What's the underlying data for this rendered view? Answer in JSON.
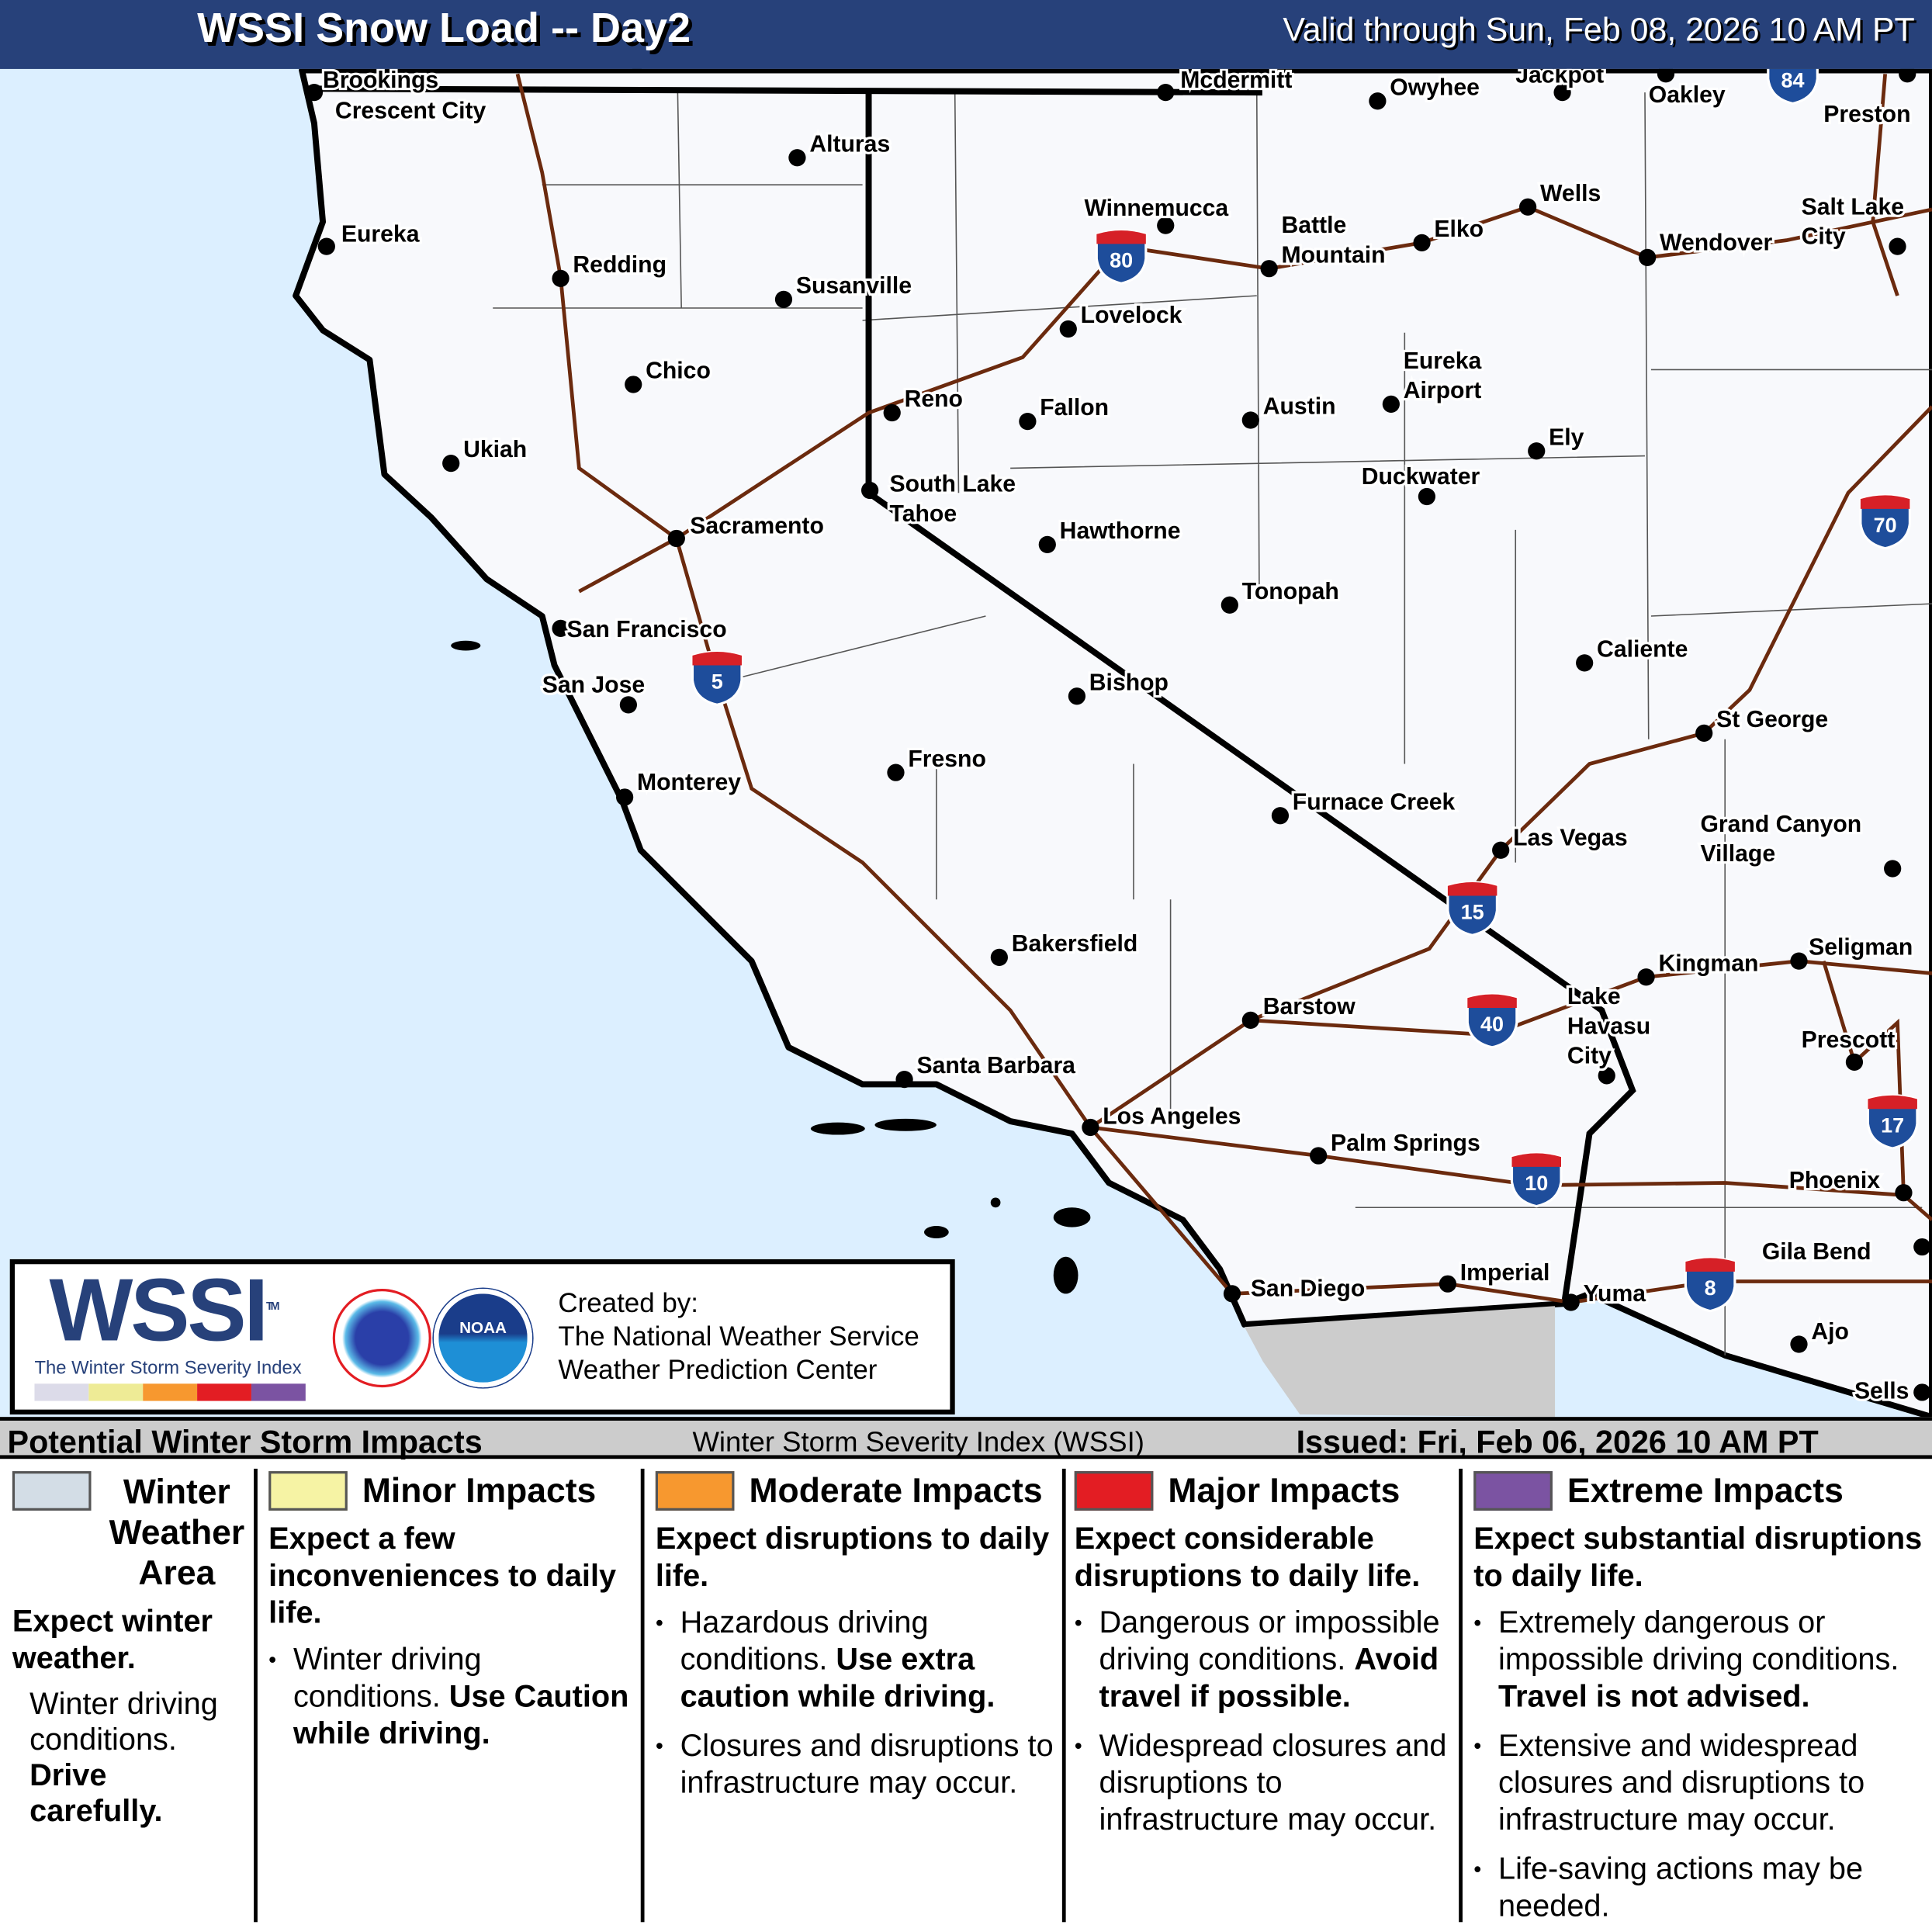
{
  "header": {
    "title": "WSSI Snow Load -- Day2",
    "valid": "Valid through Sun, Feb 08, 2026 10 AM PT"
  },
  "colors": {
    "header": "#27417a",
    "ocean": "#dcefff",
    "land": "#f8f9fc",
    "mexico": "#cccccc",
    "interstate": "#6b2a0e",
    "winter": "#d3dde6",
    "minor": "#f6f3a4",
    "moderate": "#f7982f",
    "major": "#e31d23",
    "extreme": "#7b53a2"
  },
  "cities": [
    "Brookings",
    "Crescent City",
    "Alturas",
    "Eureka",
    "Redding",
    "Susanville",
    "Winnemucca",
    "Battle Mountain",
    "Elko",
    "Wells",
    "Chico",
    "Lovelock",
    "Reno",
    "Fallon",
    "Austin",
    "Eureka Airport",
    "Ely",
    "Ukiah",
    "South Lake Tahoe",
    "Duckwater",
    "Sacramento",
    "Hawthorne",
    "Tonopah",
    "San Francisco",
    "San Jose",
    "Caliente",
    "Bishop",
    "St George",
    "Fresno",
    "Monterey",
    "Furnace Creek",
    "Las Vegas",
    "Grand Canyon Village",
    "Bakersfield",
    "Kingman",
    "Seligman",
    "Barstow",
    "Lake Havasu City",
    "Prescott",
    "Santa Barbara",
    "Los Angeles",
    "Palm Springs",
    "Phoenix",
    "Gila Bend",
    "San Diego",
    "Imperial",
    "Yuma",
    "Ajo",
    "Sells",
    "Mcdermitt",
    "Owyhee",
    "Jackpot",
    "Oakley",
    "Preston",
    "Wendover",
    "Salt Lake City"
  ],
  "interstates": [
    "80",
    "5",
    "15",
    "40",
    "10",
    "8",
    "70",
    "17",
    "84"
  ],
  "logo": {
    "wssi": "WSSI",
    "tm": "TM",
    "subtitle": "The Winter Storm Severity Index",
    "nws": "NATIONAL WEATHER SERVICE",
    "noaa": "NOAA",
    "created_by": "Created by:",
    "org1": "The National Weather Service",
    "org2": "Weather Prediction Center"
  },
  "legend": {
    "title": "Potential Winter Storm Impacts",
    "center": "Winter Storm Severity Index (WSSI)",
    "issued": "Issued: Fri, Feb 06, 2026 10 AM PT",
    "winter": {
      "title": "Winter Weather Area",
      "sub": "Expect winter weather.",
      "text": "Winter driving conditions.",
      "bold": "Drive carefully."
    },
    "minor": {
      "title": "Minor Impacts",
      "sub": "Expect a few inconveniences to daily life.",
      "b1": "Winter driving conditions.",
      "b1b": "Use Caution while driving."
    },
    "moderate": {
      "title": "Moderate Impacts",
      "sub": "Expect disruptions to daily life.",
      "b1": "Hazardous driving conditions.",
      "b1b": "Use extra caution while driving.",
      "b2": "Closures and disruptions to infrastructure may occur."
    },
    "major": {
      "title": "Major Impacts",
      "sub": "Expect considerable disruptions to daily life.",
      "b1": "Dangerous or impossible driving conditions.",
      "b1b": "Avoid travel if possible.",
      "b2": "Widespread closures and disruptions to infrastructure may occur."
    },
    "extreme": {
      "title": "Extreme Impacts",
      "sub": "Expect substantial disruptions to daily life.",
      "b1": "Extremely dangerous or impossible driving conditions.",
      "b1b": "Travel is not advised.",
      "b2": "Extensive and widespread closures and disruptions to infrastructure may occur.",
      "b3": "Life-saving actions may be needed."
    }
  }
}
